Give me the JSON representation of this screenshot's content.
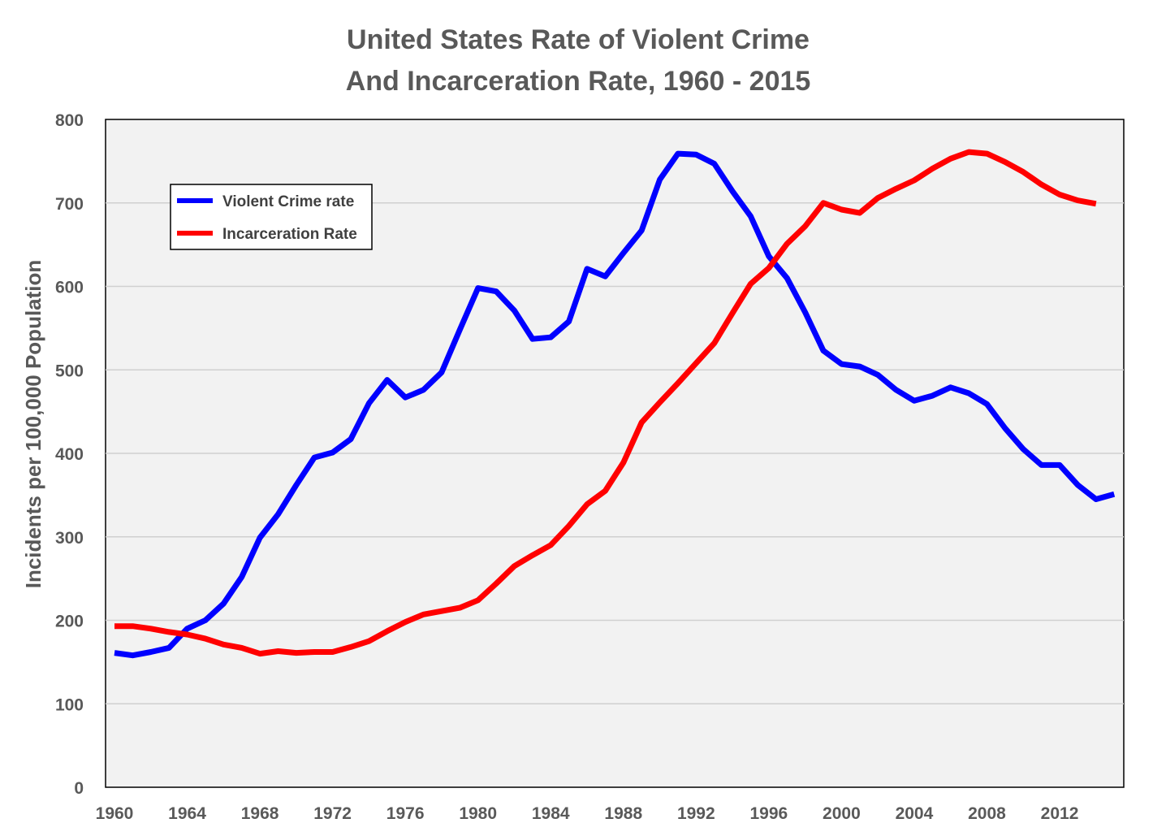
{
  "chart_data": {
    "type": "line",
    "title": [
      "United States Rate of Violent Crime",
      "And Incarceration Rate, 1960 - 2015"
    ],
    "xlabel": "",
    "ylabel": "Incidents per 100,000 Population",
    "ylim": [
      0,
      800
    ],
    "xlim": [
      1960,
      2015
    ],
    "yticks": [
      "0",
      "100",
      "200",
      "300",
      "400",
      "500",
      "600",
      "700",
      "800"
    ],
    "xticks": [
      "1960",
      "1964",
      "1968",
      "1972",
      "1976",
      "1980",
      "1984",
      "1988",
      "1992",
      "1996",
      "2000",
      "2004",
      "2008",
      "2012"
    ],
    "grid": true,
    "legend_position": "top-left",
    "series": [
      {
        "name": "Violent Crime rate",
        "color": "#0000ff",
        "x_start": 1960,
        "values": [
          161,
          158,
          162,
          167,
          190,
          200,
          220,
          252,
          299,
          327,
          362,
          395,
          401,
          417,
          460,
          488,
          467,
          476,
          497,
          548,
          598,
          594,
          571,
          537,
          539,
          558,
          621,
          612,
          640,
          667,
          728,
          759,
          758,
          747,
          714,
          684,
          636,
          610,
          569,
          523,
          507,
          504,
          494,
          476,
          463,
          469,
          479,
          472,
          459,
          430,
          405,
          386,
          386,
          362,
          345,
          351
        ]
      },
      {
        "name": "Incarceration Rate",
        "color": "#ff0000",
        "x_start": 1960,
        "values": [
          193,
          193,
          190,
          186,
          183,
          178,
          171,
          167,
          160,
          163,
          161,
          162,
          162,
          168,
          175,
          187,
          198,
          207,
          211,
          215,
          224,
          244,
          265,
          278,
          290,
          313,
          339,
          355,
          389,
          437,
          461,
          484,
          508,
          532,
          568,
          603,
          622,
          651,
          672,
          700,
          692,
          688,
          706,
          717,
          727,
          741,
          753,
          761,
          759,
          749,
          737,
          722,
          710,
          703,
          699
        ]
      }
    ]
  }
}
